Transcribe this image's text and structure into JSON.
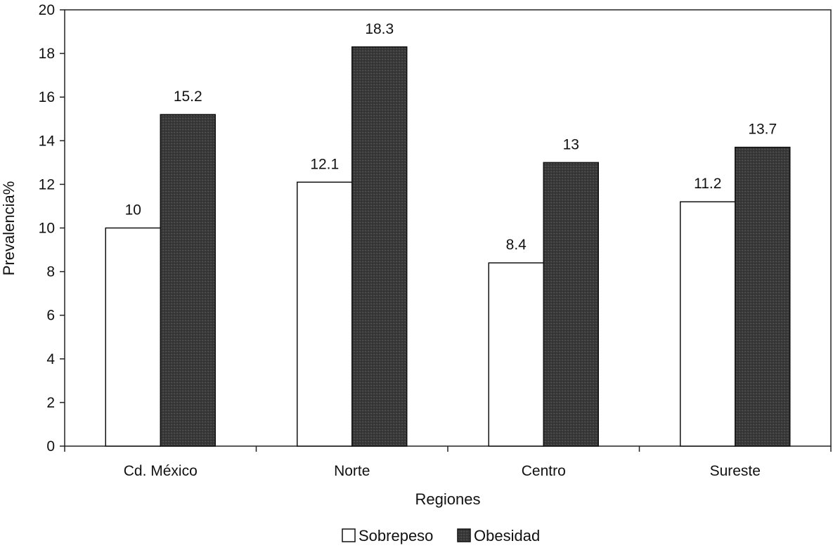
{
  "chart_data": {
    "type": "bar",
    "title": "",
    "xlabel": "Regiones",
    "ylabel": "Prevalencia%",
    "categories": [
      "Cd. México",
      "Norte",
      "Centro",
      "Sureste"
    ],
    "series": [
      {
        "name": "Sobrepeso",
        "values": [
          10,
          12.1,
          8.4,
          11.2
        ],
        "value_labels": [
          "10",
          "12.1",
          "8.4",
          "11.2"
        ],
        "color": "#ffffff"
      },
      {
        "name": "Obesidad",
        "values": [
          15.2,
          18.3,
          13,
          13.7
        ],
        "value_labels": [
          "15.2",
          "18.3",
          "13",
          "13.7"
        ],
        "color": "#3a3a3a"
      }
    ],
    "yticks": [
      "0",
      "2",
      "4",
      "6",
      "8",
      "10",
      "12",
      "14",
      "16",
      "18",
      "20"
    ],
    "ylim": [
      0,
      20
    ],
    "grid": false,
    "legend_position": "bottom-center"
  }
}
